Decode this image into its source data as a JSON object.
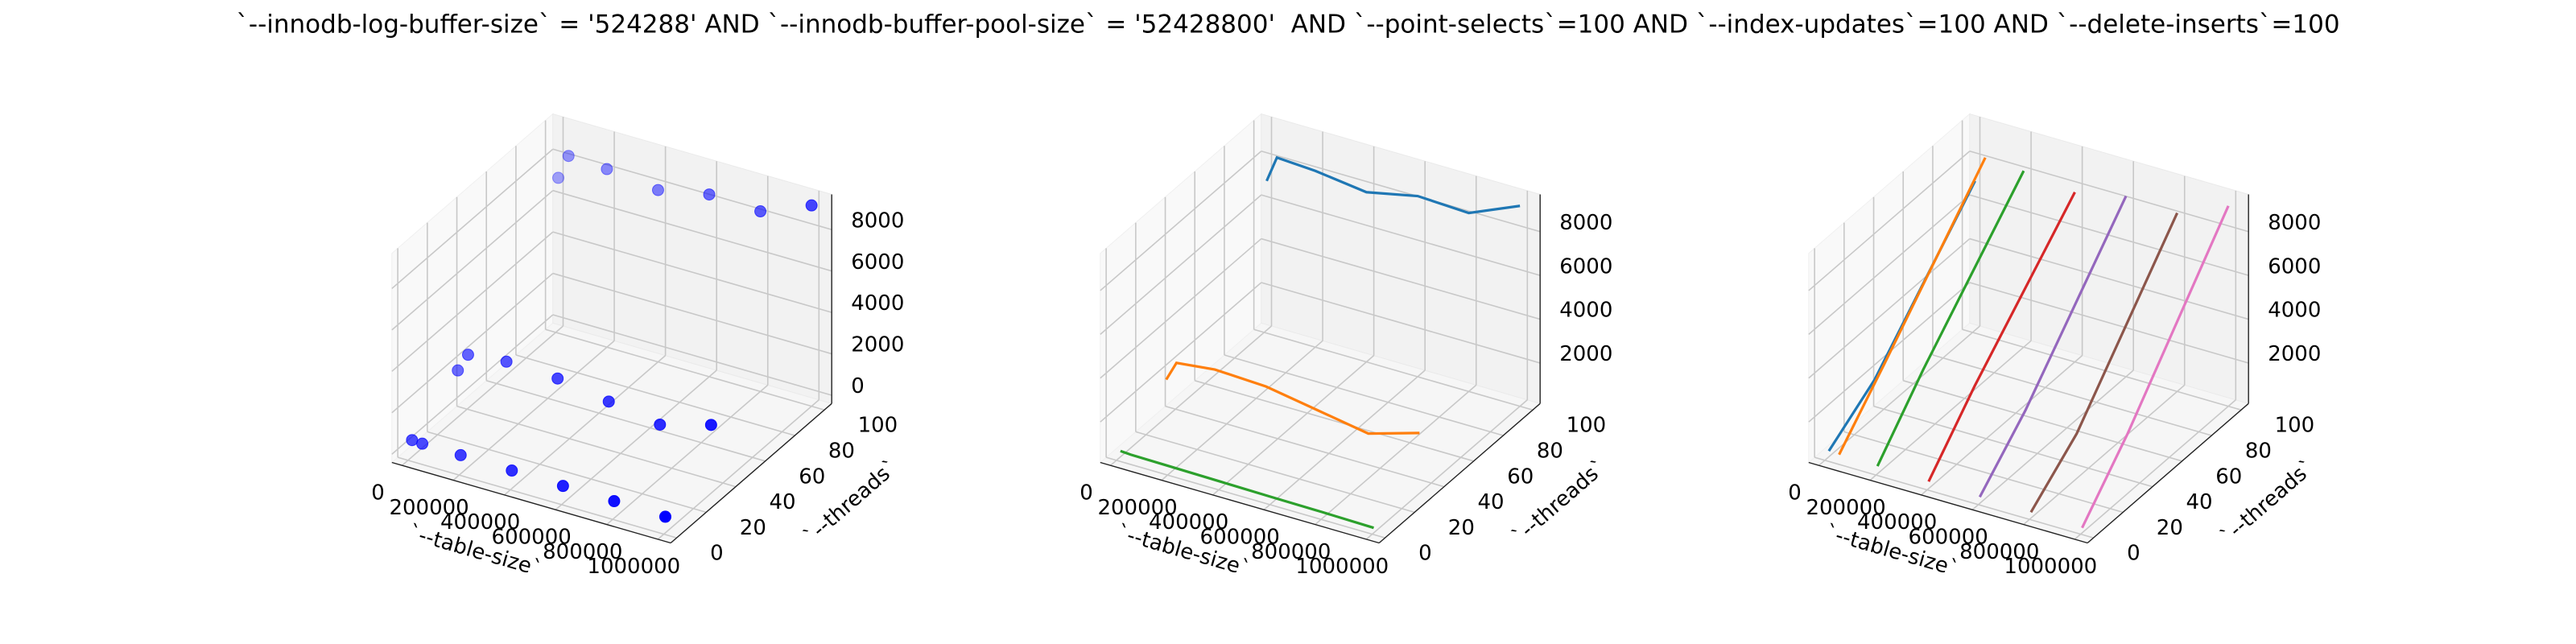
{
  "title": "`--innodb-log-buffer-size` = '524288' AND `--innodb-buffer-pool-size` = '52428800'  AND `--point-selects`=100 AND `--index-updates`=100 AND `--delete-inserts`=100",
  "chart_data": [
    {
      "type": "scatter3d",
      "xlabel": "`--table-size`",
      "ylabel": "`--threads`",
      "xlim": [
        -40000,
        1050000
      ],
      "ylim": [
        -4,
        105
      ],
      "zlim": [
        -400,
        9700
      ],
      "xticks": [
        0,
        200000,
        400000,
        600000,
        800000,
        1000000
      ],
      "yticks": [
        0,
        20,
        40,
        60,
        80,
        100
      ],
      "zticks": [
        0,
        2000,
        4000,
        6000,
        8000
      ],
      "series": [
        {
          "color": "#0000ff",
          "x": [
            10000,
            50000,
            200000,
            400000,
            600000,
            800000,
            1000000,
            10000,
            50000,
            200000,
            400000,
            600000,
            800000,
            1000000,
            10000,
            50000,
            200000,
            400000,
            600000,
            800000,
            1000000
          ],
          "y": [
            1,
            1,
            1,
            1,
            1,
            1,
            1,
            32,
            32,
            32,
            32,
            32,
            32,
            32,
            100,
            100,
            100,
            100,
            100,
            100,
            100
          ],
          "z": [
            550,
            520,
            500,
            470,
            440,
            420,
            380,
            2000,
            2900,
            3100,
            3000,
            2600,
            2200,
            2900,
            7100,
            8300,
            8200,
            7900,
            8400,
            8300,
            9300
          ]
        }
      ]
    },
    {
      "type": "line3d",
      "xlabel": "`--table-size`",
      "ylabel": "`--threads`",
      "xlim": [
        -40000,
        1050000
      ],
      "ylim": [
        -4,
        105
      ],
      "zlim": [
        150,
        9700
      ],
      "xticks": [
        0,
        200000,
        400000,
        600000,
        800000,
        1000000
      ],
      "yticks": [
        0,
        20,
        40,
        60,
        80,
        100
      ],
      "zticks": [
        2000,
        4000,
        6000,
        8000
      ],
      "series": [
        {
          "color": "#1f77b4",
          "x": [
            10000,
            50000,
            200000,
            400000,
            600000,
            800000,
            1000000
          ],
          "y": [
            100,
            100,
            100,
            100,
            100,
            100,
            100
          ],
          "z": [
            7100,
            8300,
            8200,
            7900,
            8400,
            8300,
            9300
          ]
        },
        {
          "color": "#ff7f0e",
          "x": [
            10000,
            50000,
            200000,
            400000,
            600000,
            800000,
            1000000
          ],
          "y": [
            32,
            32,
            32,
            32,
            32,
            32,
            32
          ],
          "z": [
            2000,
            2900,
            3100,
            3000,
            2600,
            2200,
            2900
          ]
        },
        {
          "color": "#2ca02c",
          "x": [
            10000,
            50000,
            200000,
            400000,
            600000,
            800000,
            1000000
          ],
          "y": [
            1,
            1,
            1,
            1,
            1,
            1,
            1
          ],
          "z": [
            550,
            520,
            500,
            470,
            440,
            420,
            380
          ]
        }
      ]
    },
    {
      "type": "line3d",
      "xlabel": "`--table-size`",
      "ylabel": "`--threads`",
      "xlim": [
        -40000,
        1050000
      ],
      "ylim": [
        -4,
        105
      ],
      "zlim": [
        150,
        9700
      ],
      "xticks": [
        0,
        200000,
        400000,
        600000,
        800000,
        1000000
      ],
      "yticks": [
        0,
        20,
        40,
        60,
        80,
        100
      ],
      "zticks": [
        2000,
        4000,
        6000,
        8000
      ],
      "series": [
        {
          "color": "#1f77b4",
          "x": [
            10000,
            10000,
            10000
          ],
          "y": [
            1,
            32,
            100
          ],
          "z": [
            550,
            2000,
            7100
          ]
        },
        {
          "color": "#ff7f0e",
          "x": [
            50000,
            50000,
            50000
          ],
          "y": [
            1,
            32,
            100
          ],
          "z": [
            520,
            2900,
            8300
          ]
        },
        {
          "color": "#2ca02c",
          "x": [
            200000,
            200000,
            200000
          ],
          "y": [
            1,
            32,
            100
          ],
          "z": [
            500,
            3100,
            8200
          ]
        },
        {
          "color": "#d62728",
          "x": [
            400000,
            400000,
            400000
          ],
          "y": [
            1,
            32,
            100
          ],
          "z": [
            470,
            3000,
            7900
          ]
        },
        {
          "color": "#9467bd",
          "x": [
            600000,
            600000,
            600000
          ],
          "y": [
            1,
            32,
            100
          ],
          "z": [
            440,
            2600,
            8400
          ]
        },
        {
          "color": "#8c564b",
          "x": [
            800000,
            800000,
            800000
          ],
          "y": [
            1,
            32,
            100
          ],
          "z": [
            420,
            2200,
            8300
          ]
        },
        {
          "color": "#e377c2",
          "x": [
            1000000,
            1000000,
            1000000
          ],
          "y": [
            1,
            32,
            100
          ],
          "z": [
            380,
            2900,
            9300
          ]
        }
      ]
    }
  ]
}
